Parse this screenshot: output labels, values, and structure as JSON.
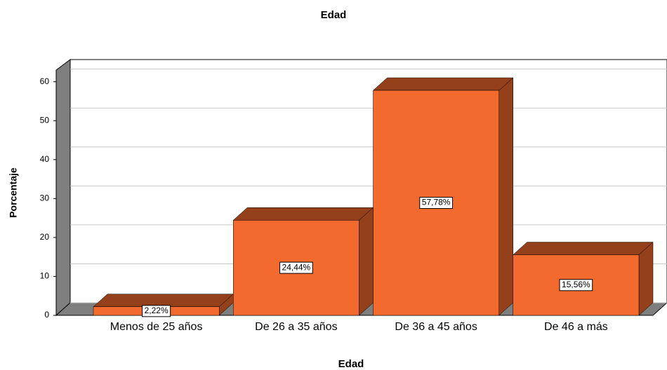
{
  "chart_data": {
    "type": "bar3d",
    "title": "Edad",
    "x_label": "Edad",
    "y_label": "Porcentaje",
    "categories": [
      "Menos de 25 años",
      "De 26 a 35 años",
      "De 36 a 45 años",
      "De 46 a más"
    ],
    "values": [
      2.22,
      24.44,
      57.78,
      15.56
    ],
    "value_labels": [
      "2,22%",
      "24,44%",
      "57,78%",
      "15,56%"
    ],
    "color": "#f26a2e",
    "ylim": [
      0,
      63
    ],
    "yticks": [
      0,
      10,
      20,
      30,
      40,
      50,
      60
    ],
    "grid": true
  }
}
